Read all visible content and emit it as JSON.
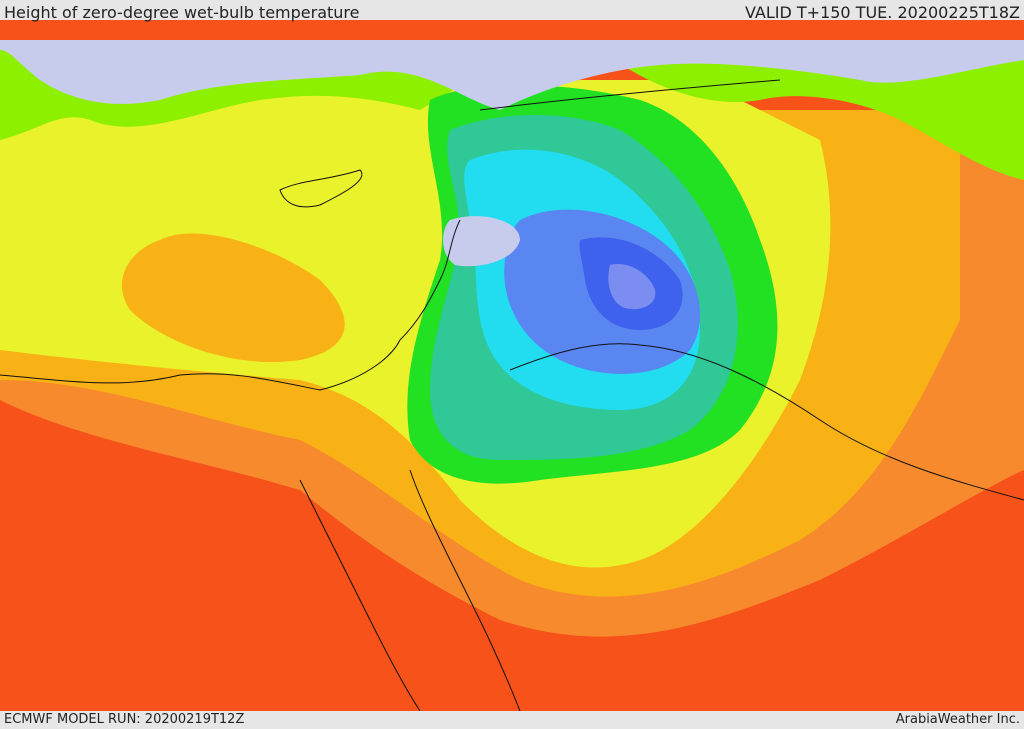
{
  "header": {
    "title": "Height of zero-degree wet-bulb temperature",
    "valid": "VALID T+150 TUE. 20200225T18Z"
  },
  "footer": {
    "model_run": "ECMWF MODEL RUN: 20200219T12Z",
    "credit": "ArabiaWeather Inc."
  },
  "colors": {
    "very_low": "#c8ccec",
    "low_purple": "#7b8df0",
    "deep_blue": "#3f62ee",
    "blue": "#5a86f2",
    "cyan": "#22dcf0",
    "teal": "#2fc896",
    "green": "#22e022",
    "lime": "#8df000",
    "yellow": "#e9f22a",
    "orange_light": "#f8b216",
    "orange": "#f78a2c",
    "red_orange": "#f6521a"
  }
}
